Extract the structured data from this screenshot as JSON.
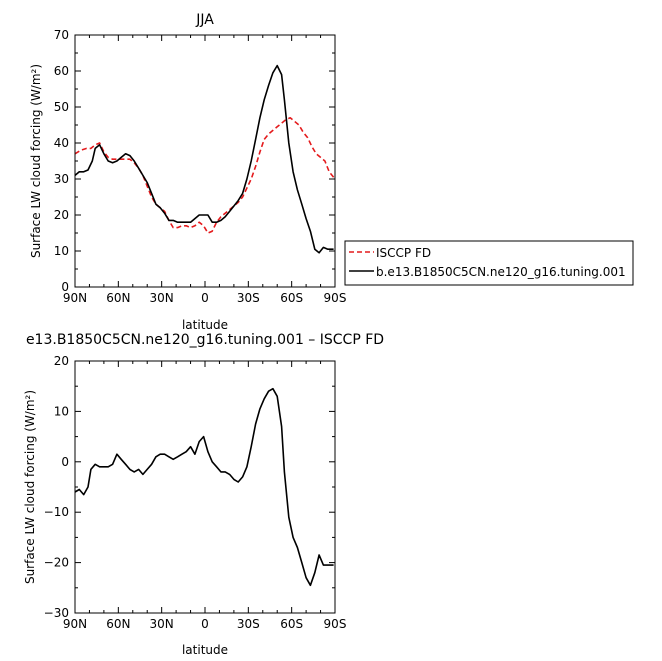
{
  "chart_data": [
    {
      "type": "line",
      "title": "JJA",
      "xlabel": "latitude",
      "ylabel": "Surface LW cloud forcing (W/m²)",
      "xlim": [
        90,
        -90
      ],
      "ylim": [
        0,
        70
      ],
      "x_ticks": [
        90,
        60,
        30,
        0,
        -30,
        -60,
        -90
      ],
      "x_tick_labels": [
        "90N",
        "60N",
        "30N",
        "0",
        "30S",
        "60S",
        "90S"
      ],
      "y_ticks": [
        0,
        10,
        20,
        30,
        40,
        50,
        60,
        70
      ],
      "y_tick_labels": [
        "0",
        "10",
        "20",
        "30",
        "40",
        "50",
        "60",
        "70"
      ],
      "legend_position": "right",
      "series": [
        {
          "name": "ISCCP FD",
          "color": "#e41a1c",
          "dash": true,
          "x": [
            90,
            86,
            82,
            79,
            76,
            73,
            70,
            67,
            64,
            61,
            58,
            55,
            52,
            49,
            46,
            43,
            40,
            37,
            34,
            31,
            28,
            25,
            22,
            19,
            16,
            13,
            10,
            7,
            4,
            1,
            -2,
            -5,
            -8,
            -11,
            -14,
            -17,
            -20,
            -23,
            -26,
            -29,
            -32,
            -35,
            -38,
            -41,
            -44,
            -47,
            -50,
            -53,
            -56,
            -59,
            -62,
            -65,
            -68,
            -71,
            -74,
            -77,
            -80,
            -83,
            -86,
            -89
          ],
          "values": [
            37,
            38,
            38.5,
            38.5,
            39.5,
            40,
            37.5,
            36,
            35.5,
            35.5,
            35.5,
            35.5,
            35.5,
            34.5,
            33,
            31,
            28,
            25,
            23,
            22,
            21,
            18.5,
            16.5,
            16.5,
            17,
            17,
            16.5,
            17,
            18,
            17,
            15,
            15.5,
            18,
            19.5,
            20.5,
            21.5,
            22.5,
            23.5,
            25,
            27.5,
            30,
            33.5,
            37.5,
            41,
            42.5,
            43.5,
            44.5,
            45.5,
            46.5,
            47,
            46,
            45,
            43,
            41.5,
            39,
            37,
            36,
            35,
            32,
            30.5
          ]
        },
        {
          "name": "b.e13.B1850C5CN.ne120_g16.tuning.001",
          "color": "#000000",
          "dash": false,
          "x": [
            90,
            87,
            84,
            81,
            78,
            76,
            73,
            70,
            67,
            64,
            61,
            58,
            55,
            52,
            49,
            46,
            43,
            40,
            37,
            34,
            31,
            28,
            25,
            22,
            19,
            16,
            13,
            10,
            7,
            4,
            1,
            -2,
            -5,
            -8,
            -11,
            -14,
            -17,
            -20,
            -23,
            -26,
            -29,
            -32,
            -35,
            -38,
            -41,
            -44,
            -47,
            -50,
            -53,
            -55,
            -58,
            -61,
            -64,
            -67,
            -70,
            -73,
            -76,
            -79,
            -82,
            -85,
            -88,
            -89
          ],
          "values": [
            31,
            32,
            32,
            32.5,
            35,
            38.5,
            39.5,
            37,
            35,
            34.5,
            35,
            36,
            37,
            36.5,
            35,
            33,
            31,
            29,
            26,
            23,
            22,
            20.5,
            18.5,
            18.5,
            18,
            18,
            18,
            18,
            19,
            20,
            20,
            20,
            18,
            18,
            18.5,
            19.5,
            21,
            22.5,
            24,
            26,
            30,
            35,
            41,
            47,
            52,
            56,
            59.5,
            61.5,
            59,
            52,
            40,
            32,
            27,
            23,
            19,
            15.5,
            10.5,
            9.5,
            11,
            10.5,
            10.5,
            10.5
          ]
        }
      ]
    },
    {
      "type": "line",
      "title": "e13.B1850C5CN.ne120_g16.tuning.001 – ISCCP FD",
      "xlabel": "latitude",
      "ylabel": "Surface LW cloud forcing (W/m²)",
      "xlim": [
        90,
        -90
      ],
      "ylim": [
        -30,
        20
      ],
      "x_ticks": [
        90,
        60,
        30,
        0,
        -30,
        -60,
        -90
      ],
      "x_tick_labels": [
        "90N",
        "60N",
        "30N",
        "0",
        "30S",
        "60S",
        "90S"
      ],
      "y_ticks": [
        -30,
        -20,
        -10,
        0,
        10,
        20
      ],
      "y_tick_labels": [
        "−30",
        "−20",
        "−10",
        "0",
        "10",
        "20"
      ],
      "series": [
        {
          "color": "#000000",
          "dash": false,
          "x": [
            90,
            87,
            84,
            81,
            79,
            76,
            73,
            70,
            67,
            64,
            61,
            58,
            55,
            52,
            49,
            46,
            43,
            40,
            37,
            34,
            31,
            28,
            25,
            22,
            19,
            16,
            13,
            10,
            7,
            4,
            1,
            -2,
            -5,
            -8,
            -11,
            -14,
            -17,
            -20,
            -23,
            -26,
            -29,
            -32,
            -35,
            -38,
            -41,
            -44,
            -47,
            -50,
            -53,
            -55,
            -58,
            -61,
            -64,
            -67,
            -70,
            -73,
            -76,
            -79,
            -82,
            -85,
            -88,
            -89
          ],
          "values": [
            -6,
            -5.5,
            -6.5,
            -5,
            -1.5,
            -0.5,
            -1,
            -1,
            -1,
            -0.5,
            1.5,
            0.5,
            -0.5,
            -1.5,
            -2,
            -1.5,
            -2.5,
            -1.5,
            -0.5,
            1,
            1.5,
            1.5,
            1,
            0.5,
            1,
            1.5,
            2,
            3,
            1.5,
            4,
            5,
            2,
            0,
            -1,
            -2,
            -2,
            -2.5,
            -3.5,
            -4,
            -3,
            -1,
            3,
            7.5,
            10.5,
            12.5,
            14,
            14.5,
            13,
            7,
            -2,
            -11,
            -15,
            -17,
            -20,
            -23,
            -24.5,
            -22,
            -18.5,
            -20.5,
            -20.5,
            -20.5,
            -20.5
          ]
        }
      ]
    }
  ]
}
